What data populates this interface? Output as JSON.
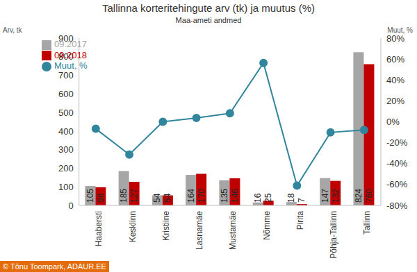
{
  "chart_data": {
    "type": "bar",
    "title": "Tallinna korteritehingute arv (tk) ja muutus (%)",
    "subtitle": "Maa-ameti andmed",
    "y_label": "Arv, tk",
    "y2_label": "Muut, %",
    "annotations": [
      "© Tõnu Toompark, ADAUR.EE"
    ],
    "categories": [
      "Haabersti",
      "Kesklinn",
      "Kristiine",
      "Lasnamäe",
      "Mustamäe",
      "Nõmme",
      "Pirita",
      "Põhja-Tallinn",
      "Tallinn"
    ],
    "series": [
      {
        "name": "09.2017",
        "type": "bar",
        "color": "#a6a6a6",
        "values": [
          105,
          185,
          54,
          164,
          135,
          16,
          18,
          147,
          824
        ]
      },
      {
        "name": "09.2018",
        "type": "bar",
        "color": "#c00000",
        "values": [
          98,
          127,
          54,
          170,
          146,
          25,
          7,
          132,
          760
        ]
      },
      {
        "name": "Muut, %",
        "type": "line",
        "axis": "y2",
        "color": "#31859c",
        "marker": "circle",
        "values": [
          -6.7,
          -31.4,
          0,
          3.7,
          8.1,
          56.3,
          -61.1,
          -10.2,
          -7.8
        ]
      }
    ],
    "ylim": [
      0,
      900
    ],
    "yticks": [
      0,
      100,
      200,
      300,
      400,
      500,
      600,
      700,
      800,
      900
    ],
    "y2lim": [
      -80,
      80
    ],
    "y2ticks": [
      {
        "value": -80,
        "label": "-80%"
      },
      {
        "value": -60,
        "label": "-60%"
      },
      {
        "value": -40,
        "label": "-40%"
      },
      {
        "value": -20,
        "label": "-20%"
      },
      {
        "value": 0,
        "label": "0%"
      },
      {
        "value": 20,
        "label": "20%"
      },
      {
        "value": 40,
        "label": "40%"
      },
      {
        "value": 60,
        "label": "60%"
      },
      {
        "value": 80,
        "label": "80%"
      }
    ],
    "data_labels": true,
    "legend": "top-left",
    "grid": false
  }
}
